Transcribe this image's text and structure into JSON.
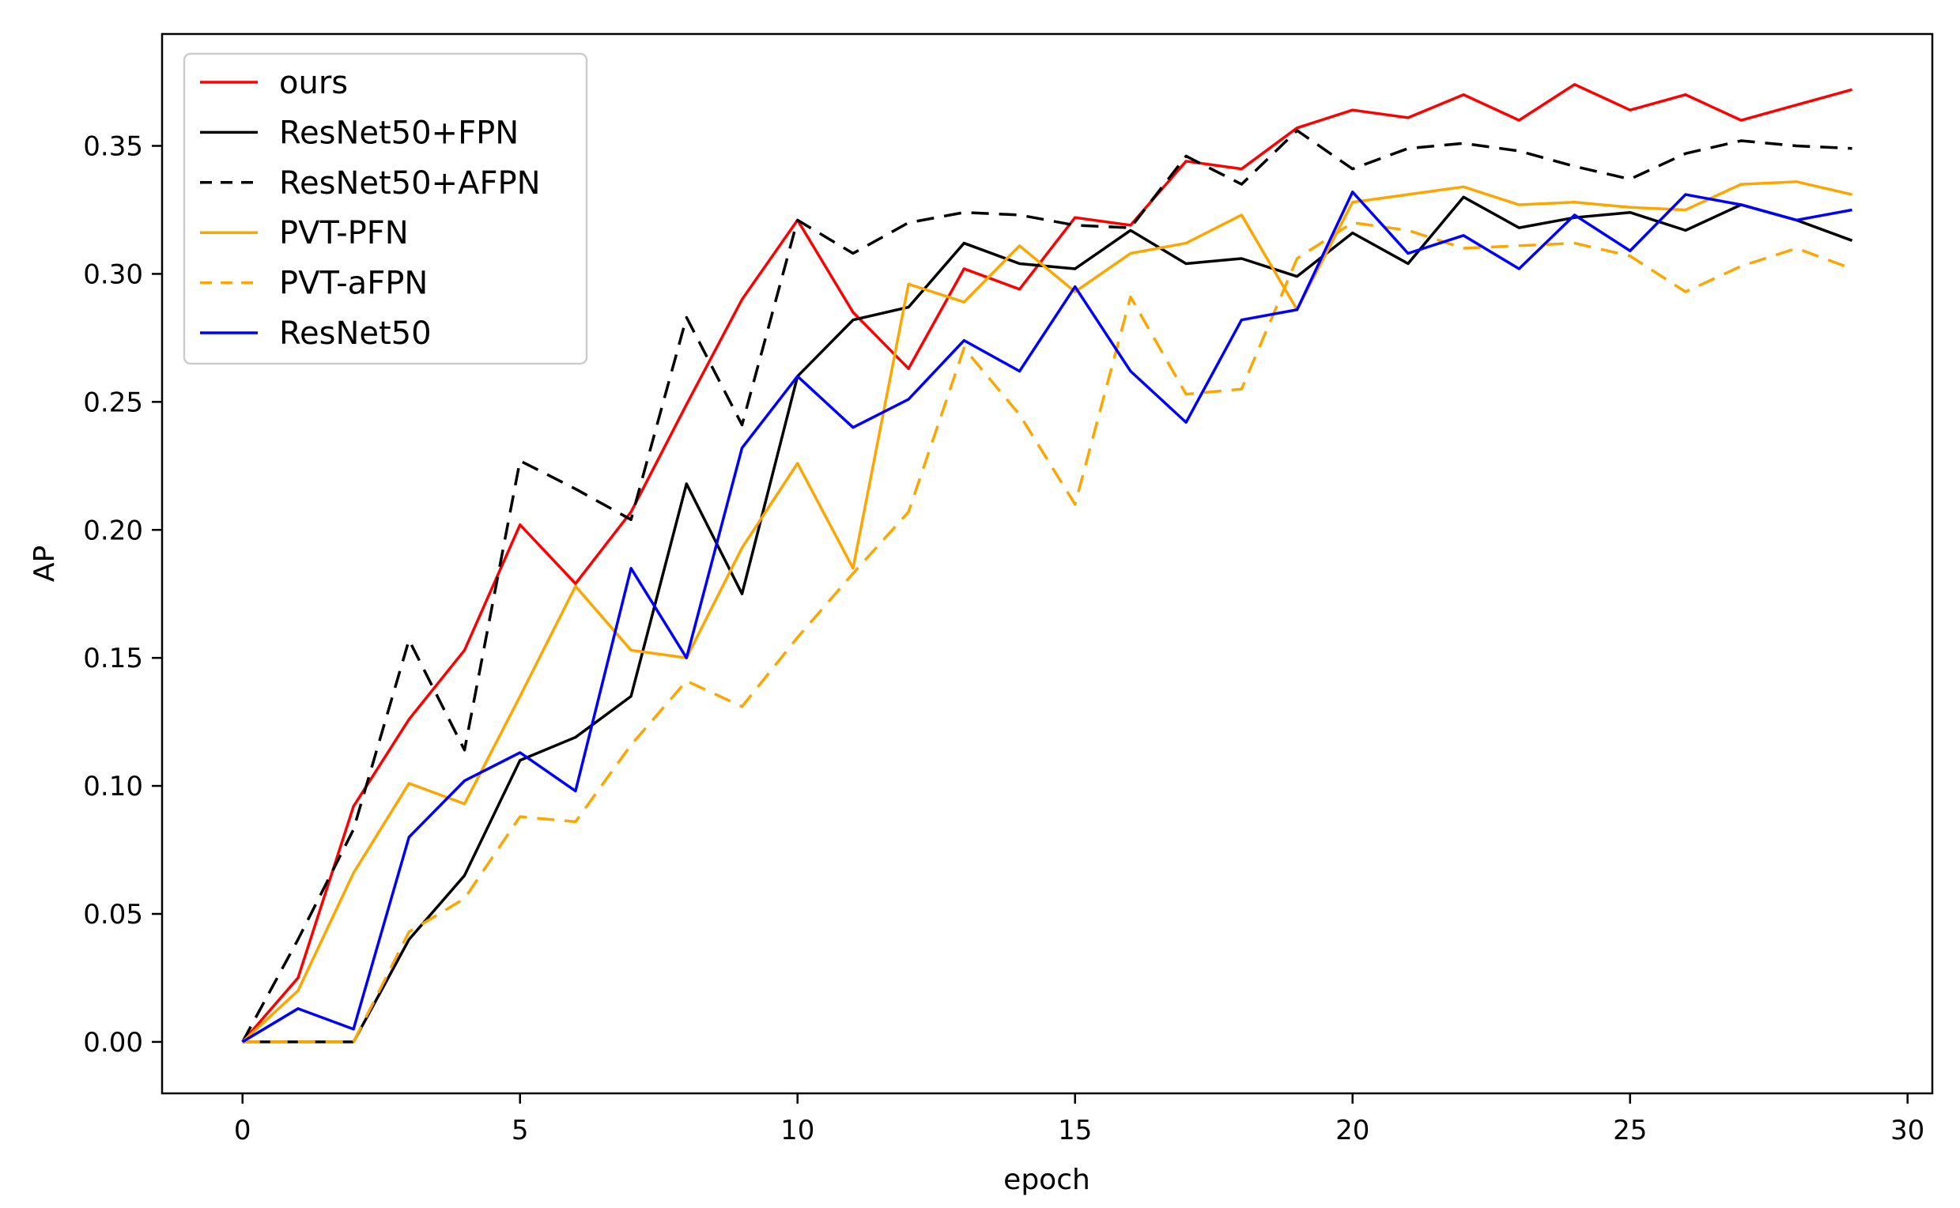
{
  "chart_data": {
    "type": "line",
    "title": "",
    "xlabel": "epoch",
    "ylabel": "AP",
    "grid": false,
    "legend_position": "upper left",
    "xlim": [
      -1.449,
      30.446
    ],
    "ylim": [
      -0.0201,
      0.3937
    ],
    "xticks": {
      "values": [
        0,
        5,
        10,
        15,
        20,
        25,
        30
      ],
      "labels": [
        "0",
        "5",
        "10",
        "15",
        "20",
        "25",
        "30"
      ]
    },
    "yticks": {
      "values": [
        0.0,
        0.05,
        0.1,
        0.15,
        0.2,
        0.25,
        0.3,
        0.35
      ],
      "labels": [
        "0.00",
        "0.05",
        "0.10",
        "0.15",
        "0.20",
        "0.25",
        "0.30",
        "0.35"
      ]
    },
    "x": [
      0,
      1,
      2,
      3,
      4,
      5,
      6,
      7,
      8,
      9,
      10,
      11,
      12,
      13,
      14,
      15,
      16,
      17,
      18,
      19,
      20,
      21,
      22,
      23,
      24,
      25,
      26,
      27,
      28,
      29
    ],
    "series": [
      {
        "name": "ours",
        "color": "#ff0000",
        "dash": "solid",
        "values": [
          0.0,
          0.025,
          0.092,
          0.126,
          0.153,
          0.202,
          0.179,
          0.207,
          0.249,
          0.29,
          0.321,
          0.285,
          0.263,
          0.302,
          0.294,
          0.322,
          0.319,
          0.344,
          0.341,
          0.357,
          0.364,
          0.361,
          0.37,
          0.36,
          0.374,
          0.364,
          0.37,
          0.36,
          0.366,
          0.372
        ]
      },
      {
        "name": "ResNet50+FPN",
        "color": "#000000",
        "dash": "solid",
        "values": [
          0.0,
          0.0,
          0.0,
          0.04,
          0.065,
          0.11,
          0.119,
          0.135,
          0.218,
          0.175,
          0.26,
          0.282,
          0.287,
          0.312,
          0.304,
          0.302,
          0.317,
          0.304,
          0.306,
          0.299,
          0.316,
          0.304,
          0.33,
          0.318,
          0.322,
          0.324,
          0.317,
          0.327,
          0.321,
          0.313
        ]
      },
      {
        "name": "ResNet50+AFPN",
        "color": "#000000",
        "dash": "dashed",
        "values": [
          0.0,
          0.04,
          0.083,
          0.157,
          0.114,
          0.227,
          0.216,
          0.204,
          0.283,
          0.241,
          0.321,
          0.308,
          0.32,
          0.324,
          0.323,
          0.319,
          0.318,
          0.346,
          0.335,
          0.356,
          0.341,
          0.349,
          0.351,
          0.348,
          0.342,
          0.337,
          0.347,
          0.352,
          0.35,
          0.349
        ]
      },
      {
        "name": "PVT-PFN",
        "color": "#ffa500",
        "dash": "solid",
        "values": [
          0.0,
          0.02,
          0.066,
          0.101,
          0.093,
          0.135,
          0.178,
          0.153,
          0.15,
          0.193,
          0.226,
          0.185,
          0.296,
          0.289,
          0.311,
          0.293,
          0.308,
          0.312,
          0.323,
          0.286,
          0.328,
          0.331,
          0.334,
          0.327,
          0.328,
          0.326,
          0.325,
          0.335,
          0.336,
          0.331
        ]
      },
      {
        "name": "PVT-aFPN",
        "color": "#ffa500",
        "dash": "dashed",
        "values": [
          0.0,
          0.0,
          0.0,
          0.043,
          0.056,
          0.088,
          0.086,
          0.116,
          0.141,
          0.131,
          0.158,
          0.183,
          0.207,
          0.271,
          0.245,
          0.21,
          0.291,
          0.253,
          0.255,
          0.306,
          0.32,
          0.317,
          0.31,
          0.311,
          0.312,
          0.307,
          0.293,
          0.303,
          0.31,
          0.302
        ]
      },
      {
        "name": "ResNet50",
        "color": "#0000ff",
        "dash": "solid",
        "values": [
          0.0,
          0.013,
          0.005,
          0.08,
          0.102,
          0.113,
          0.098,
          0.185,
          0.15,
          0.232,
          0.26,
          0.24,
          0.251,
          0.274,
          0.262,
          0.295,
          0.262,
          0.242,
          0.282,
          0.286,
          0.332,
          0.308,
          0.315,
          0.302,
          0.323,
          0.309,
          0.331,
          0.327,
          0.321,
          0.325
        ]
      }
    ]
  },
  "style": {
    "line_width": 3.5,
    "plot_dash_array": "22 13",
    "legend_dash_array": "15 11",
    "spine_color": "#000000",
    "legend_border_color": "#cccccc",
    "background": "#ffffff"
  }
}
